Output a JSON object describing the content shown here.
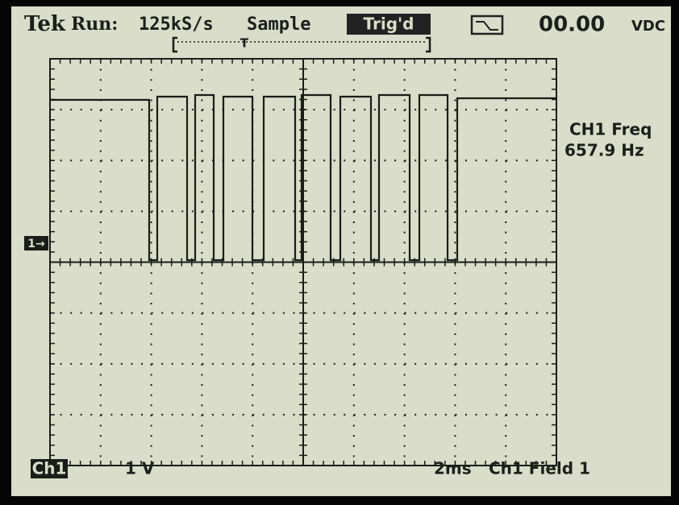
{
  "header": {
    "brand": "Tek",
    "run_state": "Run:",
    "sample_rate": "125kS/s",
    "mode": "Sample",
    "trigger_status": "Trig'd",
    "trigger_marker": "T",
    "readout": "00.00",
    "readout_unit": "VDC"
  },
  "measurement": {
    "label": "CH1 Freq",
    "value": "657.9 Hz"
  },
  "channel_marker": "1→",
  "footer": {
    "channel": "Ch1",
    "volts_per_div": "1 V",
    "time_per_div": "2ms",
    "trigger_source": "Ch1 Field 1"
  }
}
